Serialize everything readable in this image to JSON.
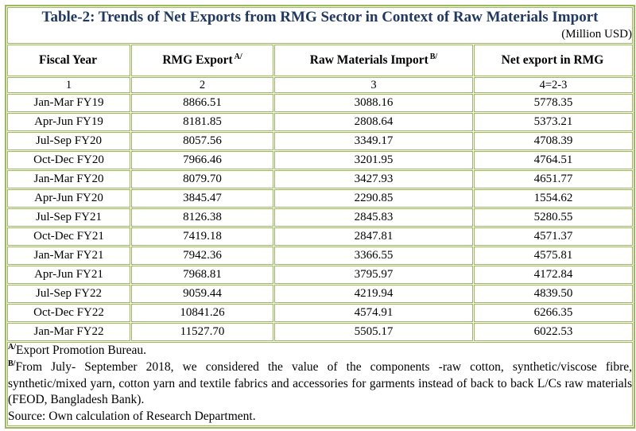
{
  "table": {
    "title": "Table-2: Trends of Net Exports from RMG Sector in Context of Raw Materials Import",
    "unit_note": "(Million USD)",
    "columns": [
      {
        "label": "Fiscal Year",
        "sup": "",
        "number": "1"
      },
      {
        "label": "RMG Export",
        "sup": "A/",
        "number": "2"
      },
      {
        "label": "Raw Materials Import",
        "sup": "B/",
        "number": "3"
      },
      {
        "label": "Net export in RMG",
        "sup": "",
        "number": "4=2-3"
      }
    ],
    "rows": [
      {
        "fiscal_year": "Jan-Mar FY19",
        "rmg_export": "8866.51",
        "raw_materials_import": "3088.16",
        "net_export": "5778.35"
      },
      {
        "fiscal_year": "Apr-Jun FY19",
        "rmg_export": "8181.85",
        "raw_materials_import": "2808.64",
        "net_export": "5373.21"
      },
      {
        "fiscal_year": "Jul-Sep FY20",
        "rmg_export": "8057.56",
        "raw_materials_import": "3349.17",
        "net_export": "4708.39"
      },
      {
        "fiscal_year": "Oct-Dec FY20",
        "rmg_export": "7966.46",
        "raw_materials_import": "3201.95",
        "net_export": "4764.51"
      },
      {
        "fiscal_year": "Jan-Mar FY20",
        "rmg_export": "8079.70",
        "raw_materials_import": "3427.93",
        "net_export": "4651.77"
      },
      {
        "fiscal_year": "Apr-Jun FY20",
        "rmg_export": "3845.47",
        "raw_materials_import": "2290.85",
        "net_export": "1554.62"
      },
      {
        "fiscal_year": "Jul-Sep FY21",
        "rmg_export": "8126.38",
        "raw_materials_import": "2845.83",
        "net_export": "5280.55"
      },
      {
        "fiscal_year": "Oct-Dec FY21",
        "rmg_export": "7419.18",
        "raw_materials_import": "2847.81",
        "net_export": "4571.37"
      },
      {
        "fiscal_year": "Jan-Mar FY21",
        "rmg_export": "7942.36",
        "raw_materials_import": "3366.55",
        "net_export": "4575.81"
      },
      {
        "fiscal_year": "Apr-Jun FY21",
        "rmg_export": "7968.81",
        "raw_materials_import": "3795.97",
        "net_export": "4172.84"
      },
      {
        "fiscal_year": "Jul-Sep FY22",
        "rmg_export": "9059.44",
        "raw_materials_import": "4219.94",
        "net_export": "4839.50"
      },
      {
        "fiscal_year": "Oct-Dec FY22",
        "rmg_export": "10841.26",
        "raw_materials_import": "4574.91",
        "net_export": "6266.35"
      },
      {
        "fiscal_year": "Jan-Mar FY22",
        "rmg_export": "11527.70",
        "raw_materials_import": "5505.17",
        "net_export": "6022.53"
      }
    ],
    "footnotes": [
      {
        "sup": "A/",
        "text": "Export Promotion Bureau."
      },
      {
        "sup": "B/",
        "text": "From July- September 2018, we considered the value of the components -raw cotton, synthetic/viscose fibre, synthetic/mixed yarn, cotton yarn and textile fabrics and accessories for garments instead of back to back L/Cs raw materials (FEOD, Bangladesh Bank)."
      },
      {
        "sup": "",
        "text": "Source: Own calculation of Research Department."
      }
    ],
    "colors": {
      "border_green": "#9BBB59",
      "title_navy": "#1F3864"
    }
  },
  "chart_data": {
    "type": "table",
    "title": "Table-2: Trends of Net Exports from RMG Sector in Context of Raw Materials Import",
    "unit": "Million USD",
    "columns": [
      "Fiscal Year",
      "RMG Export",
      "Raw Materials Import",
      "Net export in RMG"
    ],
    "rows": [
      [
        "Jan-Mar FY19",
        8866.51,
        3088.16,
        5778.35
      ],
      [
        "Apr-Jun FY19",
        8181.85,
        2808.64,
        5373.21
      ],
      [
        "Jul-Sep FY20",
        8057.56,
        3349.17,
        4708.39
      ],
      [
        "Oct-Dec FY20",
        7966.46,
        3201.95,
        4764.51
      ],
      [
        "Jan-Mar FY20",
        8079.7,
        3427.93,
        4651.77
      ],
      [
        "Apr-Jun FY20",
        3845.47,
        2290.85,
        1554.62
      ],
      [
        "Jul-Sep FY21",
        8126.38,
        2845.83,
        5280.55
      ],
      [
        "Oct-Dec FY21",
        7419.18,
        2847.81,
        4571.37
      ],
      [
        "Jan-Mar FY21",
        7942.36,
        3366.55,
        4575.81
      ],
      [
        "Apr-Jun FY21",
        7968.81,
        3795.97,
        4172.84
      ],
      [
        "Jul-Sep FY22",
        9059.44,
        4219.94,
        4839.5
      ],
      [
        "Oct-Dec FY22",
        10841.26,
        4574.91,
        6266.35
      ],
      [
        "Jan-Mar FY22",
        11527.7,
        5505.17,
        6022.53
      ]
    ]
  }
}
